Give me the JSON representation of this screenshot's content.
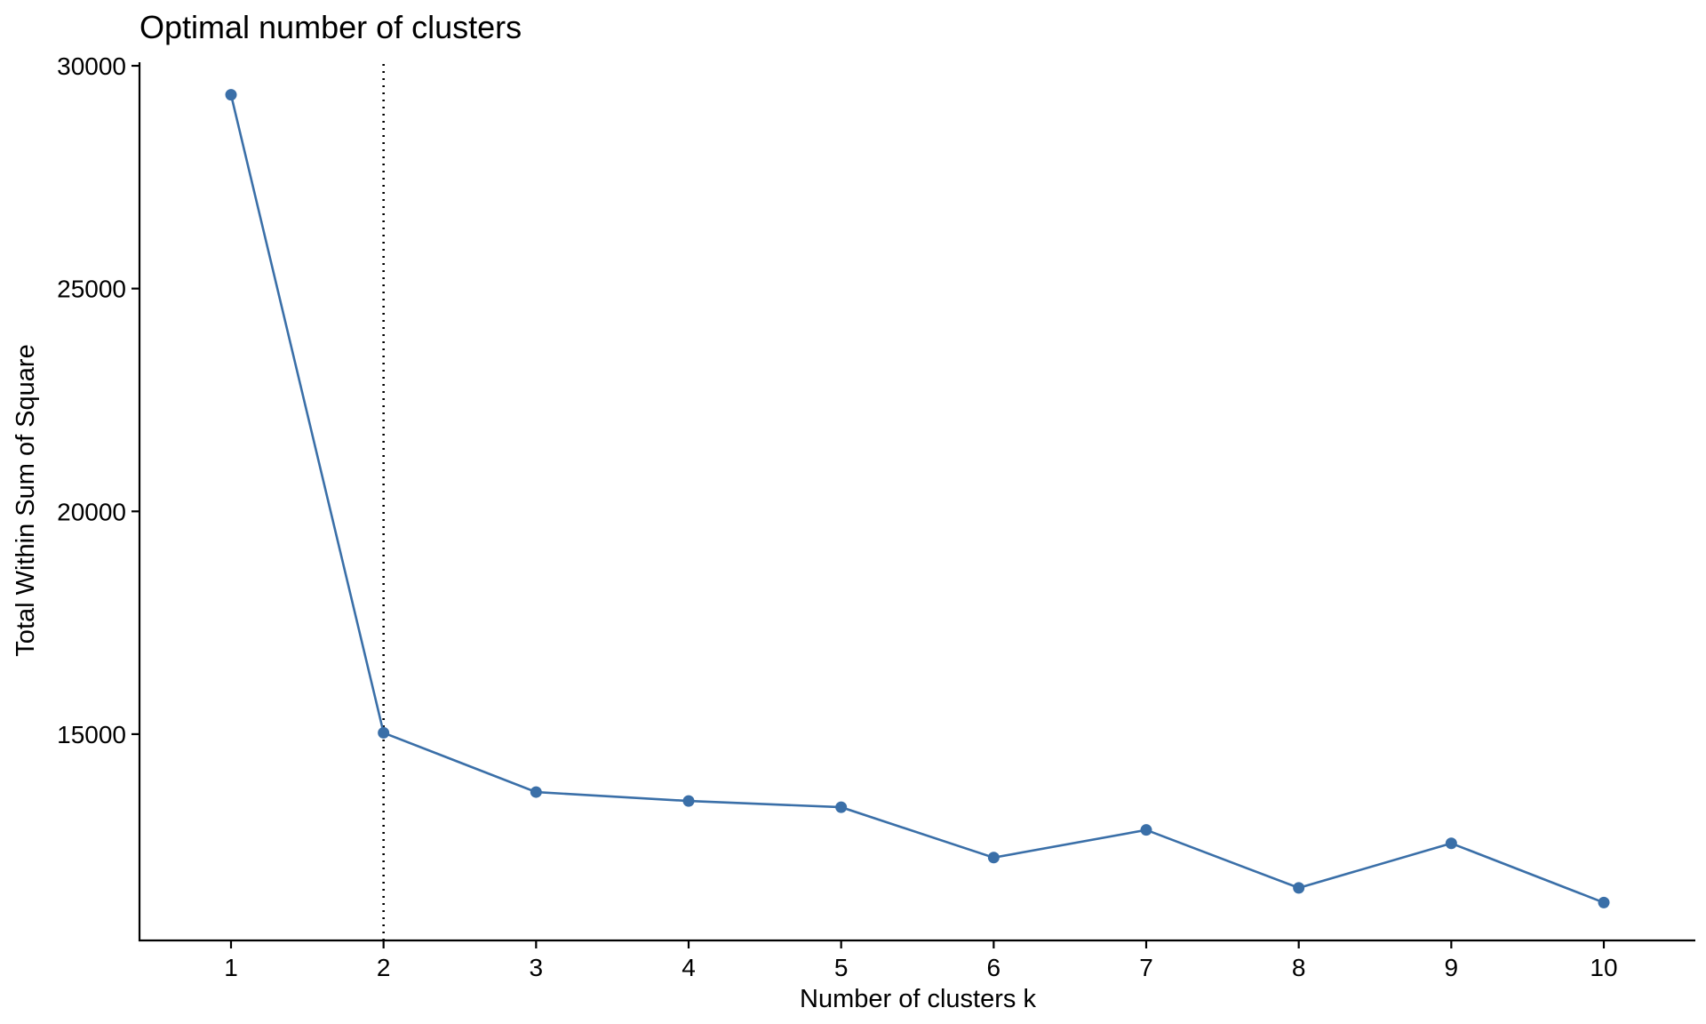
{
  "chart_data": {
    "type": "line",
    "title": "Optimal number of clusters",
    "xlabel": "Number of clusters k",
    "ylabel": "Total Within Sum of Square",
    "x": [
      1,
      2,
      3,
      4,
      5,
      6,
      7,
      8,
      9,
      10
    ],
    "x_ticks": [
      "1",
      "2",
      "3",
      "4",
      "5",
      "6",
      "7",
      "8",
      "9",
      "10"
    ],
    "y": [
      29350,
      15030,
      13700,
      13500,
      13360,
      12230,
      12850,
      11550,
      12550,
      11220
    ],
    "y_ticks": [
      15000,
      20000,
      25000,
      30000
    ],
    "xlim": [
      0.4,
      10.6
    ],
    "ylim": [
      10370,
      30080
    ],
    "vline_x": 2,
    "grid": false,
    "legend": "none",
    "colors": {
      "line": "#3a6fa8",
      "point": "#3a6fa8",
      "vline": "#000000"
    }
  }
}
